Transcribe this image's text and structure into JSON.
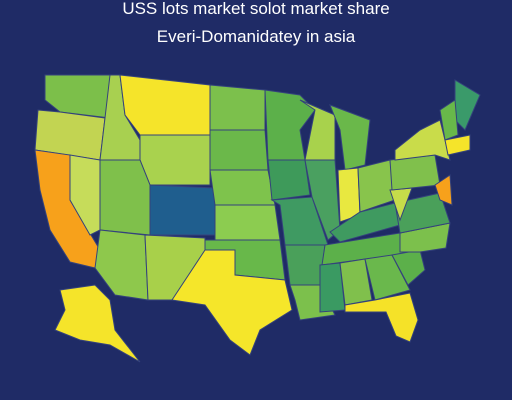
{
  "header": {
    "title": "USS lots market solot market share",
    "subtitle": "Everi-Domanidatey in asia"
  }
}
